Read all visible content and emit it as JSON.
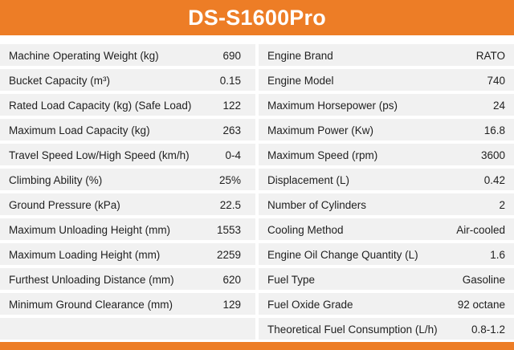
{
  "title": "DS-S1600Pro",
  "colors": {
    "accent": "#ed7d26",
    "row_bg": "#f1f1f1"
  },
  "left_specs": [
    {
      "label": "Machine Operating Weight (kg)",
      "value": "690"
    },
    {
      "label": "Bucket Capacity (m³)",
      "value": "0.15"
    },
    {
      "label": "Rated Load Capacity (kg) (Safe Load)",
      "value": "122"
    },
    {
      "label": "Maximum Load Capacity (kg)",
      "value": "263"
    },
    {
      "label": "Travel Speed Low/High Speed (km/h)",
      "value": "0-4"
    },
    {
      "label": "Climbing Ability (%)",
      "value": "25%"
    },
    {
      "label": "Ground Pressure (kPa)",
      "value": "22.5"
    },
    {
      "label": "Maximum Unloading Height (mm)",
      "value": "1553"
    },
    {
      "label": "Maximum Loading Height (mm)",
      "value": "2259"
    },
    {
      "label": "Furthest Unloading Distance (mm)",
      "value": "620"
    },
    {
      "label": "Minimum Ground Clearance (mm)",
      "value": "129"
    },
    {
      "label": "",
      "value": ""
    }
  ],
  "right_specs": [
    {
      "label": "Engine Brand",
      "value": "RATO"
    },
    {
      "label": "Engine Model",
      "value": "740"
    },
    {
      "label": "Maximum Horsepower (ps)",
      "value": "24"
    },
    {
      "label": "Maximum Power (Kw)",
      "value": "16.8"
    },
    {
      "label": "Maximum Speed (rpm)",
      "value": "3600"
    },
    {
      "label": "Displacement (L)",
      "value": "0.42"
    },
    {
      "label": "Number of Cylinders",
      "value": "2"
    },
    {
      "label": "Cooling Method",
      "value": "Air-cooled"
    },
    {
      "label": "Engine Oil Change Quantity (L)",
      "value": "1.6"
    },
    {
      "label": "Fuel Type",
      "value": "Gasoline"
    },
    {
      "label": "Fuel Oxide Grade",
      "value": "92 octane"
    },
    {
      "label": "Theoretical Fuel Consumption (L/h)",
      "value": "0.8-1.2"
    }
  ]
}
